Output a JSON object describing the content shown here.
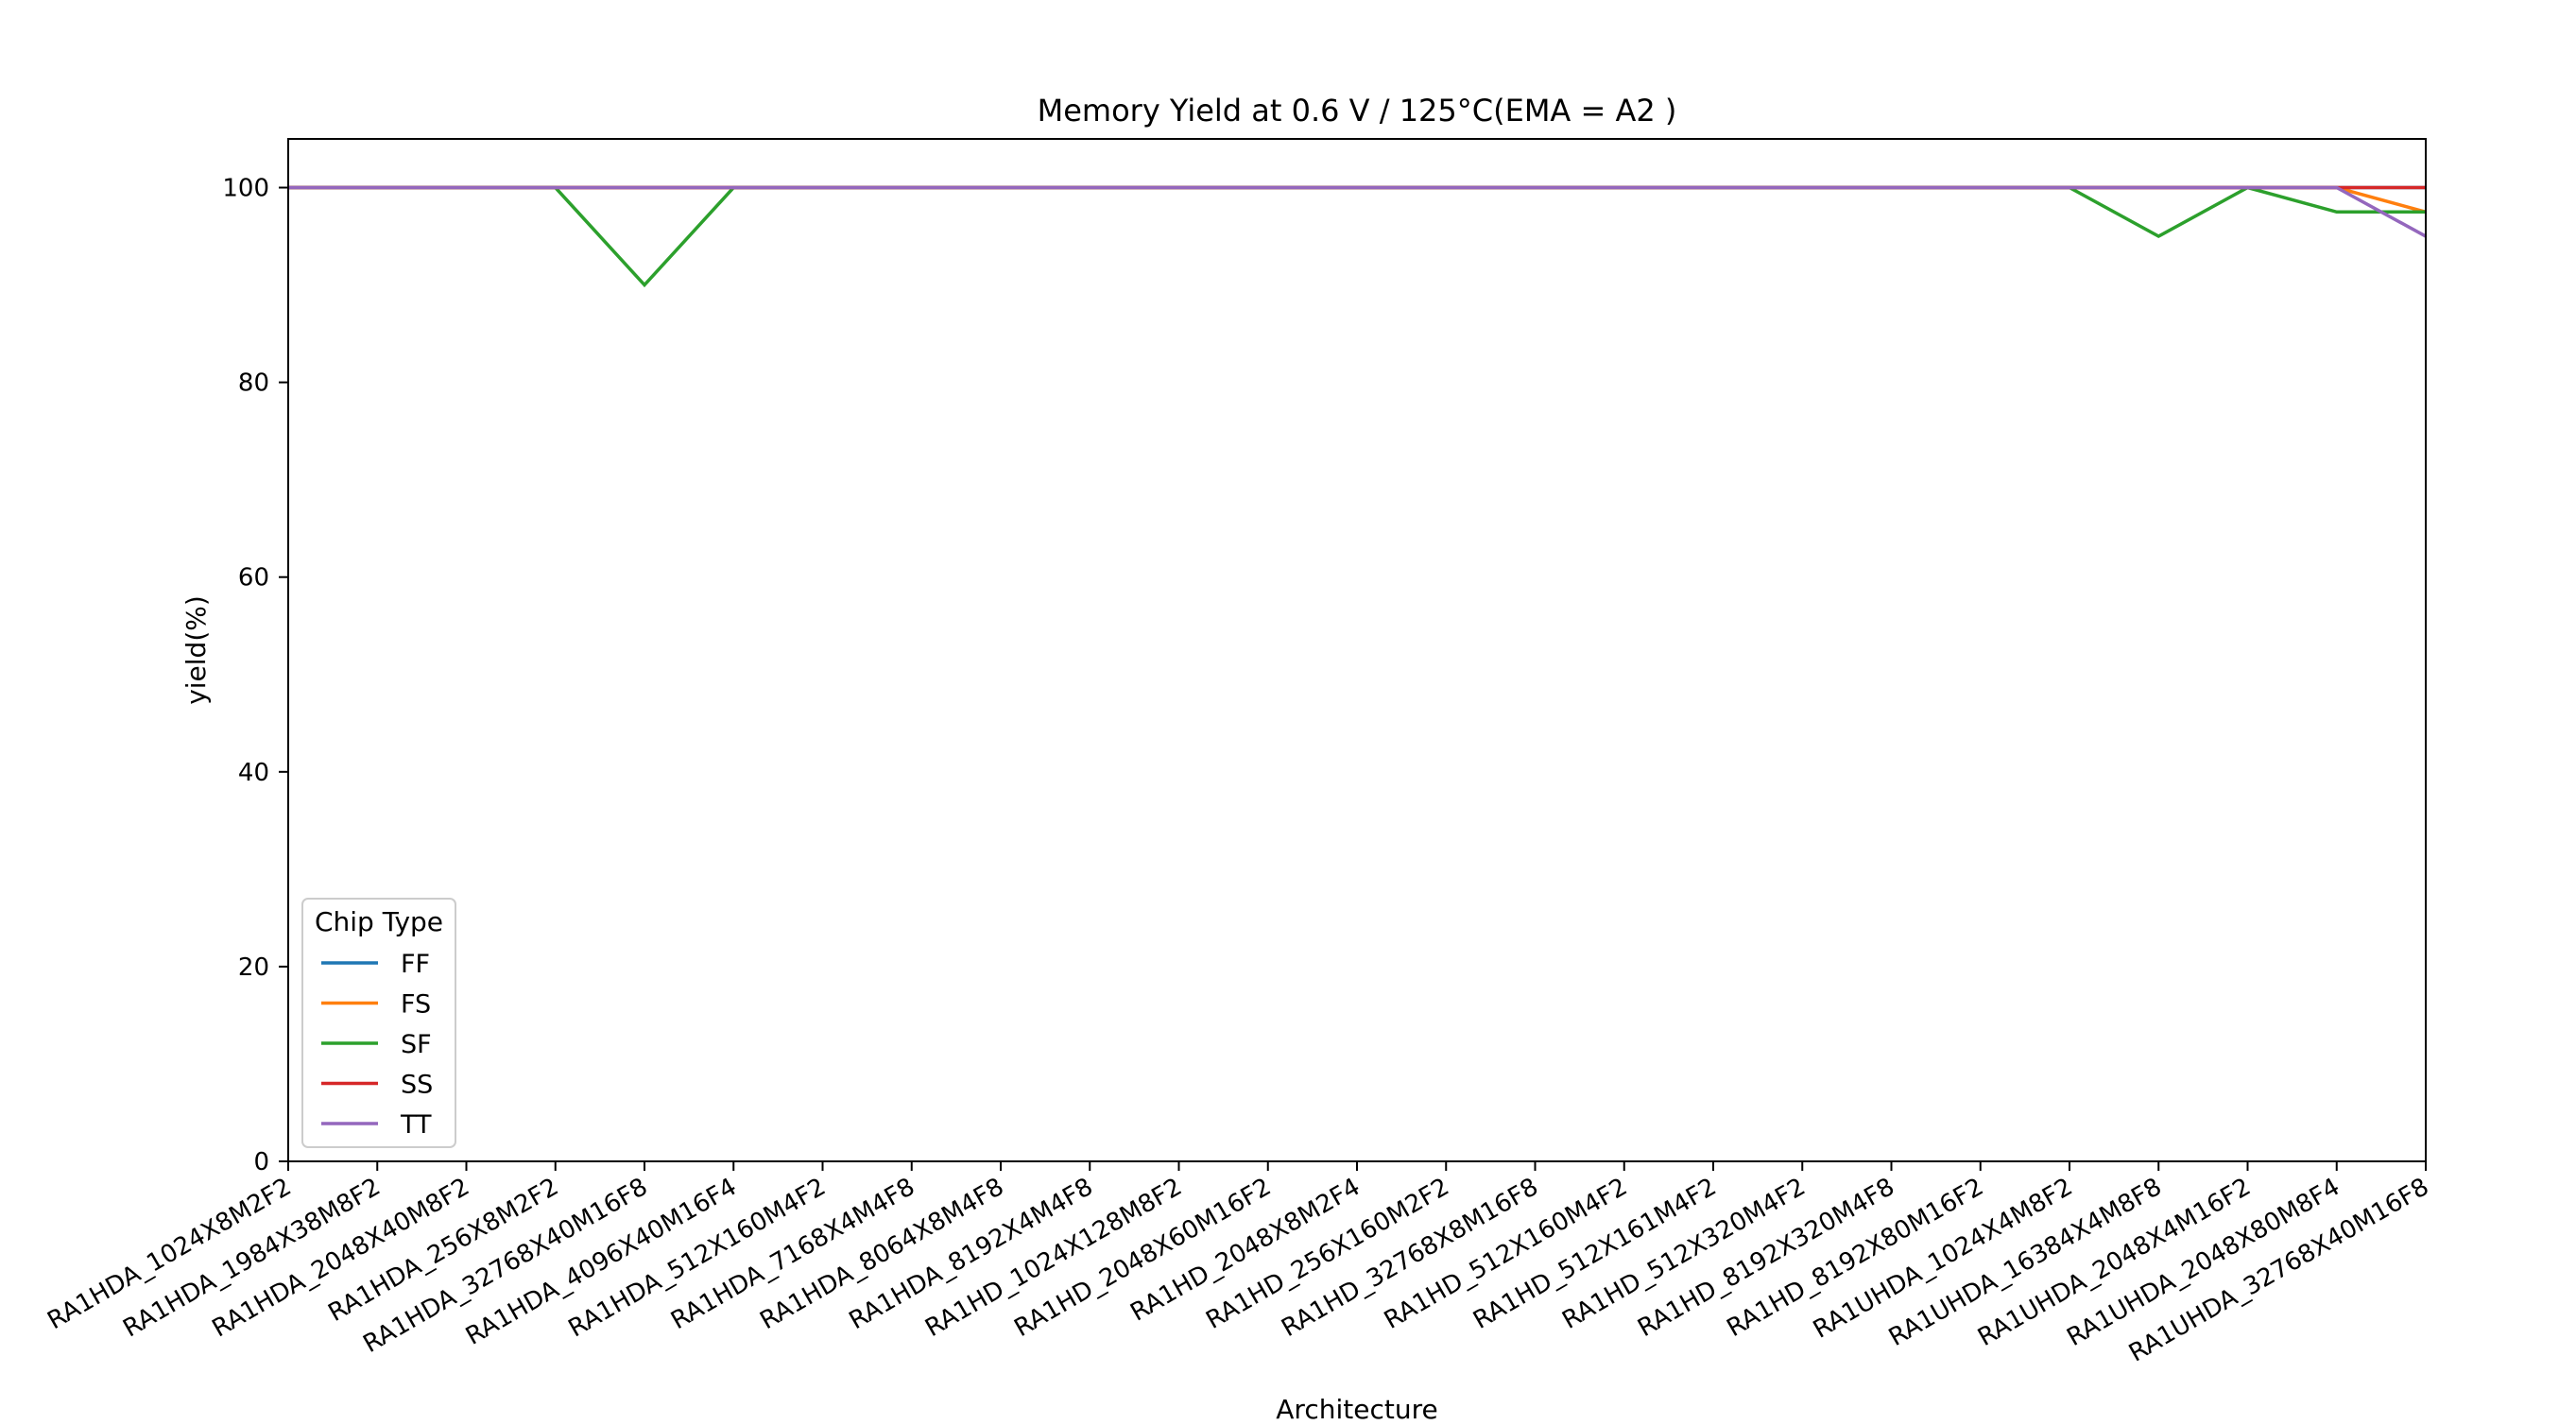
{
  "chart_data": {
    "type": "line",
    "title": "Memory Yield at 0.6 V / 125°C(EMA = A2 )",
    "xlabel": "Architecture",
    "ylabel": "yield(%)",
    "ylim": [
      0,
      105
    ],
    "yticks": [
      0,
      20,
      40,
      60,
      80,
      100
    ],
    "grid": false,
    "legend": {
      "title": "Chip Type",
      "placement": "lower-left"
    },
    "categories": [
      "RA1HDA_1024X8M2F2",
      "RA1HDA_1984X38M8F2",
      "RA1HDA_2048X40M8F2",
      "RA1HDA_256X8M2F2",
      "RA1HDA_32768X40M16F8",
      "RA1HDA_4096X40M16F4",
      "RA1HDA_512X160M4F2",
      "RA1HDA_7168X4M4F8",
      "RA1HDA_8064X8M4F8",
      "RA1HDA_8192X4M4F8",
      "RA1HD_1024X128M8F2",
      "RA1HD_2048X60M16F2",
      "RA1HD_2048X8M2F4",
      "RA1HD_256X160M2F2",
      "RA1HD_32768X8M16F8",
      "RA1HD_512X160M4F2",
      "RA1HD_512X161M4F2",
      "RA1HD_512X320M4F2",
      "RA1HD_8192X320M4F8",
      "RA1HD_8192X80M16F2",
      "RA1UHDA_1024X4M8F2",
      "RA1UHDA_16384X4M8F8",
      "RA1UHDA_2048X4M16F2",
      "RA1UHDA_2048X80M8F4",
      "RA1UHDA_32768X40M16F8"
    ],
    "series": [
      {
        "name": "FF",
        "color": "#1f77b4",
        "values": [
          100,
          100,
          100,
          100,
          100,
          100,
          100,
          100,
          100,
          100,
          100,
          100,
          100,
          100,
          100,
          100,
          100,
          100,
          100,
          100,
          100,
          100,
          100,
          100,
          100
        ]
      },
      {
        "name": "FS",
        "color": "#ff7f0e",
        "values": [
          100,
          100,
          100,
          100,
          100,
          100,
          100,
          100,
          100,
          100,
          100,
          100,
          100,
          100,
          100,
          100,
          100,
          100,
          100,
          100,
          100,
          100,
          100,
          100,
          97.5
        ]
      },
      {
        "name": "SF",
        "color": "#2ca02c",
        "values": [
          100,
          100,
          100,
          100,
          90,
          100,
          100,
          100,
          100,
          100,
          100,
          100,
          100,
          100,
          100,
          100,
          100,
          100,
          100,
          100,
          100,
          95,
          100,
          97.5,
          97.5
        ]
      },
      {
        "name": "SS",
        "color": "#d62728",
        "values": [
          100,
          100,
          100,
          100,
          100,
          100,
          100,
          100,
          100,
          100,
          100,
          100,
          100,
          100,
          100,
          100,
          100,
          100,
          100,
          100,
          100,
          100,
          100,
          100,
          100
        ]
      },
      {
        "name": "TT",
        "color": "#9467bd",
        "values": [
          100,
          100,
          100,
          100,
          100,
          100,
          100,
          100,
          100,
          100,
          100,
          100,
          100,
          100,
          100,
          100,
          100,
          100,
          100,
          100,
          100,
          100,
          100,
          100,
          95
        ]
      }
    ]
  }
}
